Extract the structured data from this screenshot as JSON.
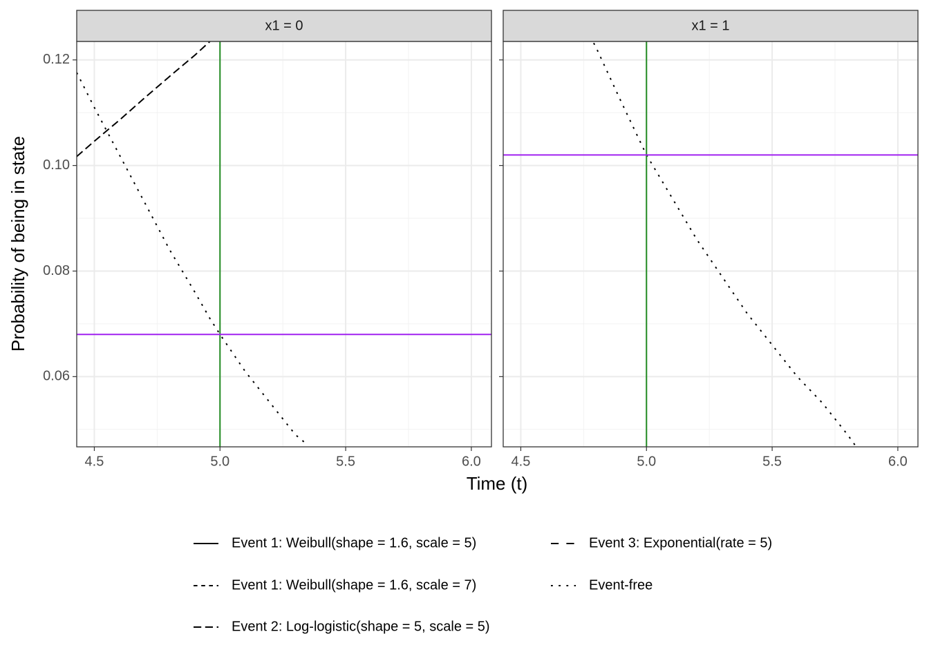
{
  "chart_data": {
    "type": "line",
    "x_label": "Time (t)",
    "y_label": "Probability of being in state",
    "xlim": [
      4.43,
      6.08
    ],
    "ylim": [
      0.0467,
      0.1235
    ],
    "xticks": [
      4.5,
      {
        "value": 5,
        "label": "5.0"
      },
      5.5,
      {
        "value": 6,
        "label": "6.0"
      }
    ],
    "yticks": [
      0.06,
      0.08,
      {
        "value": 0.1,
        "label": "0.10"
      },
      0.12
    ],
    "grid": true,
    "legend_position": "bottom",
    "series": [
      {
        "name": "Event 1: Weibull(shape = 1.6, scale = 5)",
        "linetype": "solid",
        "color": "#000000"
      },
      {
        "name": "Event 1: Weibull(shape = 1.6, scale = 7)",
        "linetype": "22",
        "color": "#000000"
      },
      {
        "name": "Event 2: Log-logistic(shape = 5, scale = 5)",
        "linetype": "42",
        "color": "#000000"
      },
      {
        "name": "Event 3: Exponential(rate = 5)",
        "linetype": "44",
        "color": "#000000"
      },
      {
        "name": "Event-free",
        "linetype": "13",
        "color": "#000000"
      }
    ],
    "panels": [
      {
        "title": "x1 = 0",
        "x": [
          4.43,
          4.5,
          4.6,
          4.7,
          4.8,
          4.9,
          4.96,
          5.0,
          5.1,
          5.2,
          5.3,
          5.35
        ],
        "series": [
          {
            "values": [
              null,
              null,
              null,
              null,
              null,
              null,
              null,
              null,
              null,
              null,
              null,
              null
            ]
          },
          {
            "values": [
              null,
              null,
              null,
              null,
              null,
              null,
              null,
              null,
              null,
              null,
              null,
              null
            ]
          },
          {
            "values": [
              0.1017,
              0.1046,
              0.1086,
              0.1128,
              0.1169,
              0.1209,
              0.1235,
              null,
              null,
              null,
              null,
              null
            ]
          },
          {
            "values": [
              null,
              null,
              null,
              null,
              null,
              null,
              null,
              null,
              null,
              null,
              null,
              null
            ]
          },
          {
            "values": [
              0.1176,
              0.111,
              0.102,
              0.093,
              0.084,
              0.076,
              0.071,
              0.068,
              0.061,
              0.055,
              0.049,
              0.047
            ]
          }
        ],
        "vline": {
          "x": 5,
          "color": "#228b22"
        },
        "hline": {
          "y": 0.068,
          "color": "#a020f0"
        }
      },
      {
        "title": "x1 = 1",
        "x": [
          4.79,
          4.8,
          4.9,
          5.0,
          5.1,
          5.2,
          5.3,
          5.4,
          5.5,
          5.6,
          5.7,
          5.8,
          5.83
        ],
        "series": [
          {
            "values": [
              null,
              null,
              null,
              null,
              null,
              null,
              null,
              null,
              null,
              null,
              null,
              null,
              null
            ]
          },
          {
            "values": [
              null,
              null,
              null,
              null,
              null,
              null,
              null,
              null,
              null,
              null,
              null,
              null,
              null
            ]
          },
          {
            "values": [
              null,
              null,
              null,
              null,
              null,
              null,
              null,
              null,
              null,
              null,
              null,
              null,
              null
            ]
          },
          {
            "values": [
              null,
              null,
              null,
              null,
              null,
              null,
              null,
              null,
              null,
              null,
              null,
              null,
              null
            ]
          },
          {
            "values": [
              0.1232,
              0.1223,
              0.112,
              0.102,
              0.094,
              0.086,
              0.079,
              0.072,
              0.066,
              0.06,
              0.055,
              0.049,
              0.047
            ]
          }
        ],
        "vline": {
          "x": 5,
          "color": "#228b22"
        },
        "hline": {
          "y": 0.102,
          "color": "#a020f0"
        }
      }
    ]
  }
}
